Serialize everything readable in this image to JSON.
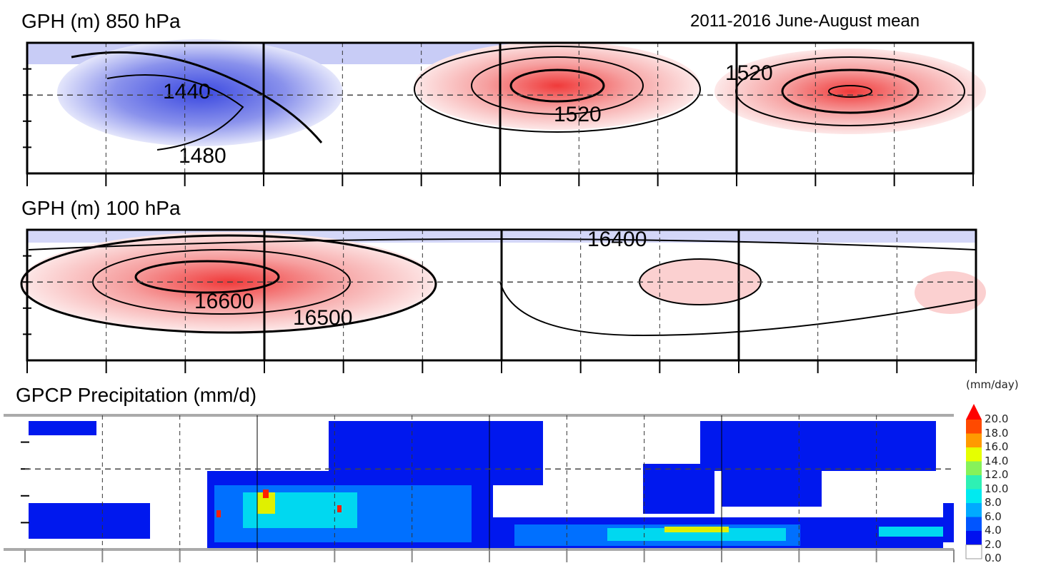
{
  "panels": [
    {
      "title": "GPH (m) 850 hPa",
      "contour_labels": [
        "1440",
        "1480",
        "1520",
        "1520"
      ]
    },
    {
      "title": "GPH (m) 100 hPa",
      "contour_labels": [
        "16400",
        "16600",
        "16500"
      ]
    },
    {
      "title": "GPCP Precipitation (mm/d)"
    }
  ],
  "subtitle": "2011-2016 June-August mean",
  "colorbar": {
    "unit": "(mm/day)",
    "ticks": [
      "20.0",
      "18.0",
      "16.0",
      "14.0",
      "12.0",
      "10.0",
      "8.0",
      "6.0",
      "4.0",
      "2.0",
      "0.0"
    ],
    "colors": [
      "#ff4a00",
      "#ff9a00",
      "#e6ff00",
      "#86f25a",
      "#2ef0b4",
      "#00eaf0",
      "#00aaff",
      "#0055ff",
      "#0010f0",
      "#ffffff"
    ],
    "arrow_color": "#ff0000"
  },
  "colors": {
    "high": "#f04040",
    "low": "#4050e0"
  }
}
